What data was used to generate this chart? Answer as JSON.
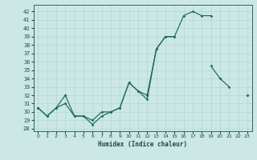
{
  "bg_color": "#cce8e4",
  "grid_color": "#b0d8d4",
  "line_color": "#1a6b5a",
  "xlabel": "Humidex (Indice chaleur)",
  "ylim": [
    27.7,
    42.8
  ],
  "xlim": [
    -0.5,
    23.5
  ],
  "yticks": [
    28,
    29,
    30,
    31,
    32,
    33,
    34,
    35,
    36,
    37,
    38,
    39,
    40,
    41,
    42
  ],
  "xticks": [
    0,
    1,
    2,
    3,
    4,
    5,
    6,
    7,
    8,
    9,
    10,
    11,
    12,
    13,
    14,
    15,
    16,
    17,
    18,
    19,
    20,
    21,
    22,
    23
  ],
  "lines": [
    [
      30.5,
      29.5,
      30.5,
      31.0,
      29.5,
      29.5,
      28.5,
      29.5,
      30.0,
      30.5,
      33.5,
      32.5,
      31.5,
      37.5,
      39.0,
      39.0,
      41.5,
      42.0,
      41.5,
      41.5,
      null,
      null,
      null,
      null
    ],
    [
      30.5,
      29.5,
      30.5,
      32.0,
      29.5,
      29.5,
      29.0,
      30.0,
      30.0,
      30.5,
      33.5,
      32.5,
      32.0,
      37.5,
      39.0,
      39.0,
      null,
      null,
      null,
      35.5,
      34.0,
      33.0,
      null,
      32.0
    ],
    [
      30.5,
      null,
      null,
      32.0,
      null,
      null,
      null,
      null,
      null,
      null,
      null,
      null,
      32.0,
      null,
      null,
      null,
      null,
      null,
      null,
      null,
      null,
      null,
      null,
      32.0
    ]
  ]
}
